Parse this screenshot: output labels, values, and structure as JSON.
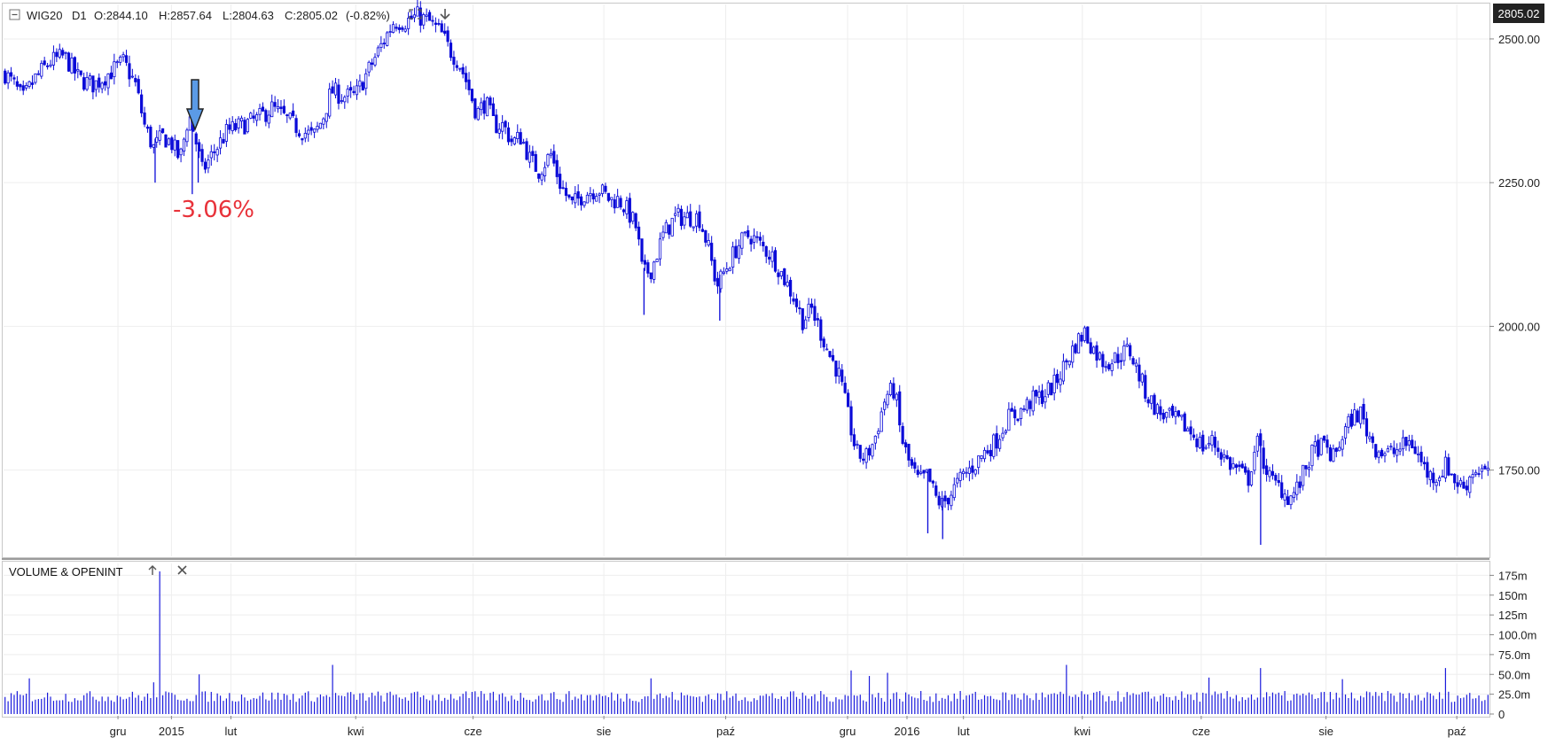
{
  "header": {
    "collapse_icon": "minus-box-icon",
    "symbol": "WIG20",
    "timeframe": "D1",
    "open": "O:2844.10",
    "high": "H:2857.64",
    "low": "L:2804.63",
    "close": "C:2805.02",
    "change": "(-0.82%)",
    "fullscreen_icon": "expand-icon",
    "download_icon": "arrow-down-icon"
  },
  "price_tag": "2805.02",
  "annotation": {
    "text": "-3.06%",
    "arrow_icon": "down-arrow-icon",
    "color": "#e8323a",
    "arrow_color": "#5b9be6"
  },
  "volume_panel": {
    "title": "VOLUME & OPENINT",
    "collapse_icon": "arrow-up-icon",
    "close_icon": "close-icon"
  },
  "colors": {
    "candle": "#0a0ad8",
    "volume": "#1a1adc",
    "grid": "#eeeeee"
  },
  "chart_data": [
    {
      "type": "candlestick",
      "title": "",
      "ylim": [
        1600,
        2560
      ],
      "y_ticks": [
        {
          "value": 2500,
          "label": "2500.00"
        },
        {
          "value": 2250,
          "label": "2250.00"
        },
        {
          "value": 2000,
          "label": "2000.00"
        },
        {
          "value": 1750,
          "label": "1750.00"
        }
      ],
      "x_ticks": [
        "gru",
        "2015",
        "lut",
        "kwi",
        "cze",
        "sie",
        "paź",
        "gru",
        "2016",
        "lut",
        "kwi",
        "cze",
        "sie",
        "paź"
      ],
      "x_tick_positions": [
        0.077,
        0.113,
        0.153,
        0.237,
        0.316,
        0.404,
        0.486,
        0.568,
        0.608,
        0.646,
        0.726,
        0.806,
        0.89,
        0.978
      ],
      "price_path": [
        [
          0.0,
          2440
        ],
        [
          0.006,
          2420
        ],
        [
          0.012,
          2395
        ],
        [
          0.02,
          2430
        ],
        [
          0.03,
          2460
        ],
        [
          0.04,
          2470
        ],
        [
          0.05,
          2430
        ],
        [
          0.06,
          2420
        ],
        [
          0.07,
          2440
        ],
        [
          0.08,
          2460
        ],
        [
          0.088,
          2420
        ],
        [
          0.094,
          2350
        ],
        [
          0.1,
          2310
        ],
        [
          0.106,
          2330
        ],
        [
          0.112,
          2320
        ],
        [
          0.118,
          2290
        ],
        [
          0.124,
          2370
        ],
        [
          0.128,
          2330
        ],
        [
          0.133,
          2270
        ],
        [
          0.14,
          2300
        ],
        [
          0.15,
          2340
        ],
        [
          0.16,
          2350
        ],
        [
          0.17,
          2360
        ],
        [
          0.18,
          2380
        ],
        [
          0.19,
          2360
        ],
        [
          0.2,
          2340
        ],
        [
          0.208,
          2330
        ],
        [
          0.214,
          2360
        ],
        [
          0.22,
          2410
        ],
        [
          0.228,
          2400
        ],
        [
          0.236,
          2400
        ],
        [
          0.242,
          2430
        ],
        [
          0.25,
          2470
        ],
        [
          0.256,
          2500
        ],
        [
          0.262,
          2530
        ],
        [
          0.27,
          2530
        ],
        [
          0.278,
          2540
        ],
        [
          0.286,
          2530
        ],
        [
          0.294,
          2510
        ],
        [
          0.3,
          2480
        ],
        [
          0.306,
          2460
        ],
        [
          0.312,
          2420
        ],
        [
          0.318,
          2370
        ],
        [
          0.324,
          2390
        ],
        [
          0.33,
          2350
        ],
        [
          0.336,
          2350
        ],
        [
          0.342,
          2320
        ],
        [
          0.348,
          2330
        ],
        [
          0.354,
          2290
        ],
        [
          0.36,
          2270
        ],
        [
          0.368,
          2300
        ],
        [
          0.374,
          2250
        ],
        [
          0.382,
          2210
        ],
        [
          0.39,
          2230
        ],
        [
          0.4,
          2240
        ],
        [
          0.408,
          2220
        ],
        [
          0.414,
          2220
        ],
        [
          0.42,
          2200
        ],
        [
          0.426,
          2170
        ],
        [
          0.43,
          2090
        ],
        [
          0.436,
          2100
        ],
        [
          0.444,
          2160
        ],
        [
          0.452,
          2190
        ],
        [
          0.46,
          2190
        ],
        [
          0.468,
          2190
        ],
        [
          0.474,
          2140
        ],
        [
          0.48,
          2070
        ],
        [
          0.486,
          2100
        ],
        [
          0.494,
          2140
        ],
        [
          0.502,
          2160
        ],
        [
          0.51,
          2140
        ],
        [
          0.518,
          2120
        ],
        [
          0.526,
          2080
        ],
        [
          0.532,
          2050
        ],
        [
          0.538,
          2010
        ],
        [
          0.544,
          2030
        ],
        [
          0.55,
          1990
        ],
        [
          0.556,
          1950
        ],
        [
          0.562,
          1920
        ],
        [
          0.568,
          1850
        ],
        [
          0.574,
          1780
        ],
        [
          0.58,
          1770
        ],
        [
          0.586,
          1800
        ],
        [
          0.594,
          1880
        ],
        [
          0.6,
          1890
        ],
        [
          0.604,
          1810
        ],
        [
          0.61,
          1760
        ],
        [
          0.616,
          1730
        ],
        [
          0.622,
          1740
        ],
        [
          0.628,
          1700
        ],
        [
          0.632,
          1690
        ],
        [
          0.638,
          1710
        ],
        [
          0.646,
          1740
        ],
        [
          0.654,
          1760
        ],
        [
          0.66,
          1780
        ],
        [
          0.668,
          1800
        ],
        [
          0.676,
          1840
        ],
        [
          0.684,
          1850
        ],
        [
          0.692,
          1870
        ],
        [
          0.7,
          1880
        ],
        [
          0.708,
          1900
        ],
        [
          0.716,
          1940
        ],
        [
          0.722,
          1970
        ],
        [
          0.728,
          1990
        ],
        [
          0.734,
          1960
        ],
        [
          0.74,
          1940
        ],
        [
          0.746,
          1940
        ],
        [
          0.752,
          1950
        ],
        [
          0.758,
          1960
        ],
        [
          0.764,
          1920
        ],
        [
          0.77,
          1880
        ],
        [
          0.778,
          1850
        ],
        [
          0.786,
          1840
        ],
        [
          0.794,
          1830
        ],
        [
          0.802,
          1810
        ],
        [
          0.808,
          1790
        ],
        [
          0.814,
          1800
        ],
        [
          0.82,
          1780
        ],
        [
          0.826,
          1760
        ],
        [
          0.832,
          1750
        ],
        [
          0.838,
          1730
        ],
        [
          0.844,
          1800
        ],
        [
          0.848,
          1770
        ],
        [
          0.854,
          1730
        ],
        [
          0.86,
          1720
        ],
        [
          0.866,
          1700
        ],
        [
          0.872,
          1720
        ],
        [
          0.878,
          1760
        ],
        [
          0.884,
          1790
        ],
        [
          0.89,
          1790
        ],
        [
          0.896,
          1770
        ],
        [
          0.902,
          1810
        ],
        [
          0.908,
          1840
        ],
        [
          0.914,
          1850
        ],
        [
          0.918,
          1820
        ],
        [
          0.924,
          1790
        ],
        [
          0.93,
          1780
        ],
        [
          0.936,
          1780
        ],
        [
          0.942,
          1790
        ],
        [
          0.948,
          1800
        ],
        [
          0.954,
          1770
        ],
        [
          0.96,
          1740
        ],
        [
          0.966,
          1740
        ],
        [
          0.972,
          1760
        ],
        [
          0.978,
          1730
        ],
        [
          0.984,
          1720
        ],
        [
          0.99,
          1750
        ],
        [
          0.996,
          1750
        ],
        [
          1.0,
          1740
        ]
      ],
      "spikes": [
        [
          0.102,
          2250
        ],
        [
          0.127,
          2230
        ],
        [
          0.131,
          2250
        ],
        [
          0.431,
          2020
        ],
        [
          0.482,
          2010
        ],
        [
          0.622,
          1640
        ],
        [
          0.632,
          1630
        ],
        [
          0.846,
          1620
        ]
      ]
    },
    {
      "type": "bar",
      "title": "VOLUME & OPENINT",
      "ylim": [
        0,
        190
      ],
      "y_ticks": [
        {
          "value": 175,
          "label": "175m"
        },
        {
          "value": 150,
          "label": "150m"
        },
        {
          "value": 125,
          "label": "125m"
        },
        {
          "value": 100,
          "label": "100.0m"
        },
        {
          "value": 75,
          "label": "75.0m"
        },
        {
          "value": 50,
          "label": "50.0m"
        },
        {
          "value": 25,
          "label": "25.0m"
        },
        {
          "value": 0,
          "label": "0"
        }
      ],
      "baseline": 20,
      "spikes": [
        [
          0.016,
          45
        ],
        [
          0.104,
          180
        ],
        [
          0.101,
          40
        ],
        [
          0.131,
          50
        ],
        [
          0.221,
          62
        ],
        [
          0.436,
          45
        ],
        [
          0.57,
          55
        ],
        [
          0.582,
          48
        ],
        [
          0.596,
          52
        ],
        [
          0.716,
          62
        ],
        [
          0.812,
          46
        ],
        [
          0.846,
          58
        ],
        [
          0.902,
          44
        ],
        [
          0.972,
          58
        ]
      ]
    }
  ]
}
